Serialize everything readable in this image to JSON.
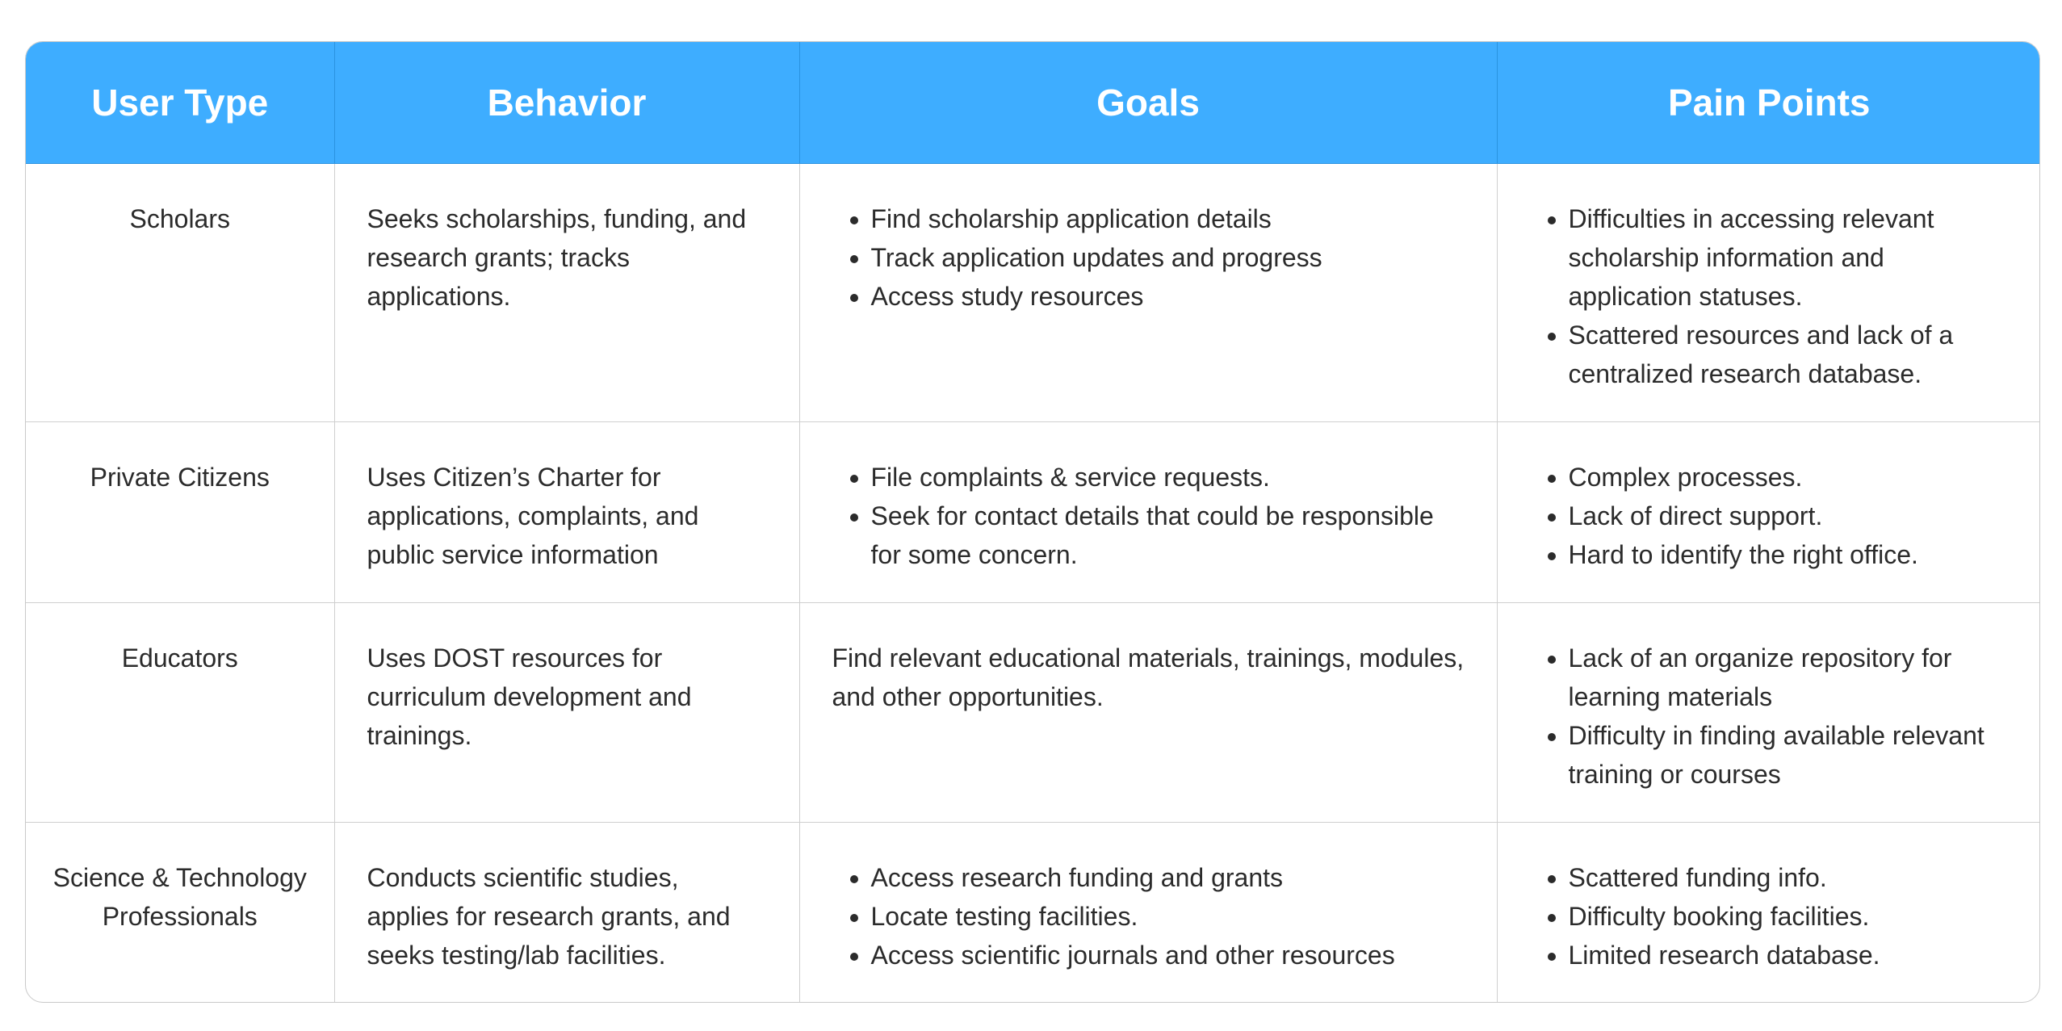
{
  "headers": [
    "User Type",
    "Behavior",
    "Goals",
    "Pain Points"
  ],
  "rows": [
    {
      "user_type": "Scholars",
      "behavior": "Seeks scholarships, funding, and research grants; tracks applications.",
      "goals": [
        "Find scholarship application details",
        "Track application updates and progress",
        "Access study resources"
      ],
      "pain_points": [
        "Difficulties in accessing relevant scholarship information and application statuses.",
        "Scattered resources and lack of a centralized research database."
      ]
    },
    {
      "user_type": "Private Citizens",
      "behavior": "Uses Citizen’s Charter for applications, complaints, and public service information",
      "goals": [
        "File complaints & service requests.",
        "Seek for contact details that could be responsible for some concern."
      ],
      "pain_points": [
        "Complex processes.",
        " Lack of direct support.",
        " Hard to identify the right office."
      ]
    },
    {
      "user_type": "Educators",
      "behavior": "Uses DOST resources for curriculum development and trainings.",
      "goals_text": "Find relevant educational materials, trainings, modules, and other opportunities.",
      "pain_points": [
        "Lack of an organize repository for learning materials",
        "Difficulty in finding available relevant training or courses"
      ]
    },
    {
      "user_type": "Science & Technology Professionals",
      "behavior": "Conducts scientific studies, applies for research grants, and seeks testing/lab facilities.",
      "goals": [
        "Access research funding and grants",
        "Locate testing facilities.",
        "Access scientific journals and other resources"
      ],
      "pain_points": [
        "Scattered funding info.",
        "Difficulty booking facilities.",
        "Limited research database."
      ]
    }
  ]
}
